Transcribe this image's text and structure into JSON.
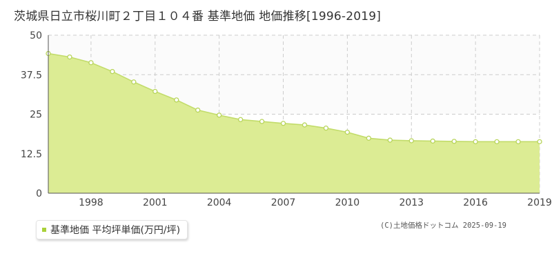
{
  "title": "茨城県日立市桜川町２丁目１０４番 基準地価 地価推移[1996-2019]",
  "legend": {
    "label": "基準地価 平均坪単価(万円/坪)",
    "color": "#a9d13a"
  },
  "copyright": "(C)土地価格ドットコム 2025-09-19",
  "colors": {
    "fill": "#dcec94",
    "line": "#c2dc6a",
    "marker_stroke": "#b7d45a",
    "grid": "#cccccc",
    "axis": "#555555"
  },
  "chart_data": {
    "type": "area",
    "title": "茨城県日立市桜川町２丁目１０４番 基準地価 地価推移[1996-2019]",
    "series": [
      {
        "name": "基準地価 平均坪単価(万円/坪)",
        "x": [
          1996,
          1997,
          1998,
          1999,
          2000,
          2001,
          2002,
          2003,
          2004,
          2005,
          2006,
          2007,
          2008,
          2009,
          2010,
          2011,
          2012,
          2013,
          2014,
          2015,
          2016,
          2017,
          2018,
          2019
        ],
        "values": [
          44.2,
          43.1,
          41.3,
          38.5,
          35.2,
          32.2,
          29.5,
          26.3,
          24.7,
          23.3,
          22.7,
          22.1,
          21.6,
          20.6,
          19.3,
          17.4,
          16.8,
          16.6,
          16.5,
          16.4,
          16.3,
          16.3,
          16.3,
          16.3
        ]
      }
    ],
    "x_ticks": [
      "1998",
      "2001",
      "2004",
      "2007",
      "2010",
      "2013",
      "2016",
      "2019"
    ],
    "y_ticks": [
      "0",
      "12.5",
      "25",
      "37.5",
      "50"
    ],
    "xlim": [
      1996,
      2019
    ],
    "ylim": [
      0,
      50
    ],
    "grid": true,
    "xlabel": "",
    "ylabel": ""
  }
}
